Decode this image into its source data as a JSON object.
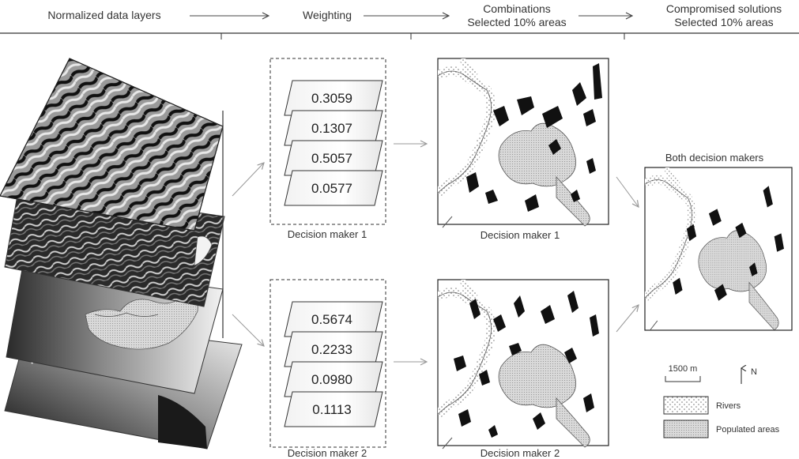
{
  "header": {
    "step1": "Normalized data layers",
    "step2": "Weighting",
    "step3_line1": "Combinations",
    "step3_line2": "Selected 10% areas",
    "step4_line1": "Compromised solutions",
    "step4_line2": "Selected 10% areas"
  },
  "decision_makers": [
    {
      "caption": "Decision maker 1",
      "weights": [
        "0.3059",
        "0.1307",
        "0.5057",
        "0.0577"
      ],
      "map_caption": "Decision maker 1"
    },
    {
      "caption": "Decision maker 2",
      "weights": [
        "0.5674",
        "0.2233",
        "0.0980",
        "0.1113"
      ],
      "map_caption": "Decision maker 2"
    }
  ],
  "compromise": {
    "caption": "Both decision makers"
  },
  "legend": {
    "scale_label": "1500 m",
    "north_label": "N",
    "rivers_label": "Rivers",
    "populated_label": "Populated areas"
  },
  "colors": {
    "ink": "#333333",
    "arrow": "#999999",
    "selected": "#111111",
    "populated": "#d6d6d6"
  },
  "icons": {
    "north": "north-arrow-icon",
    "scale": "scale-bar-icon"
  }
}
